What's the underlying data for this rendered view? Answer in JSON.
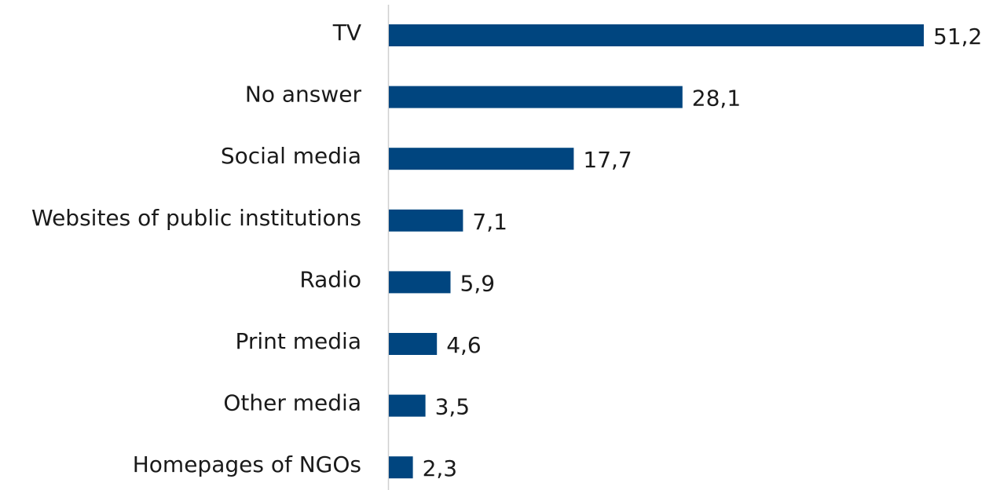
{
  "colors": {
    "bar": "#00457f",
    "axis": "#cfcfcf",
    "text": "#1a1a1a"
  },
  "chart_data": {
    "type": "bar",
    "orientation": "horizontal",
    "title": "",
    "xlabel": "",
    "ylabel": "",
    "grid": false,
    "legend": "none",
    "xlim": [
      0,
      51.2
    ],
    "categories": [
      "TV",
      "No answer",
      "Social media",
      "Websites of public institutions",
      "Radio",
      "Print media",
      "Other media",
      "Homepages of NGOs"
    ],
    "values": [
      51.2,
      28.1,
      17.7,
      7.1,
      5.9,
      4.6,
      3.5,
      2.3
    ],
    "value_labels": [
      "51,2",
      "28,1",
      "17,7",
      "7,1",
      "5,9",
      "4,6",
      "3,5",
      "2,3"
    ]
  }
}
